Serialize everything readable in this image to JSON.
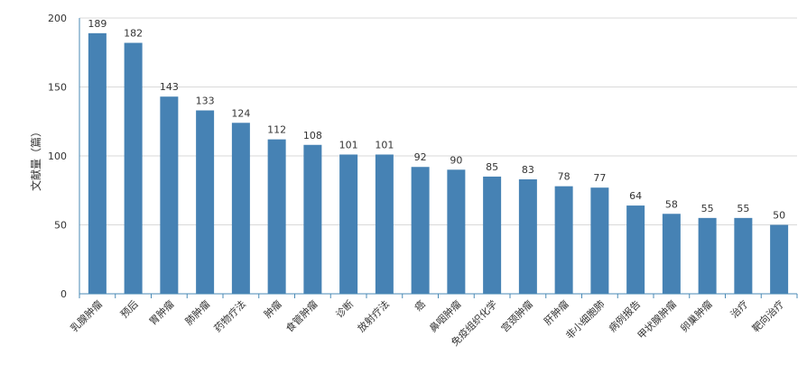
{
  "chart_data": {
    "type": "bar",
    "ylabel": "文献量（篇）",
    "ylim": [
      0,
      200
    ],
    "yticks": [
      0,
      50,
      100,
      150,
      200
    ],
    "grid": true,
    "colors": {
      "bar": "#4682b4",
      "grid": "#d9d9d9",
      "axis": "#4a8ab5"
    },
    "categories": [
      "乳腺肿瘤",
      "预后",
      "胃肿瘤",
      "肺肿瘤",
      "药物疗法",
      "肿瘤",
      "食管肿瘤",
      "诊断",
      "放射疗法",
      "癌",
      "鼻咽肿瘤",
      "免疫组织化学",
      "宫颈肿瘤",
      "肝肿瘤",
      "非小细胞肺",
      "病例报告",
      "甲状腺肿瘤",
      "卵巢肿瘤",
      "治疗",
      "靶向治疗"
    ],
    "values": [
      189,
      182,
      143,
      133,
      124,
      112,
      108,
      101,
      101,
      92,
      90,
      85,
      83,
      78,
      77,
      64,
      58,
      55,
      55,
      50
    ]
  }
}
